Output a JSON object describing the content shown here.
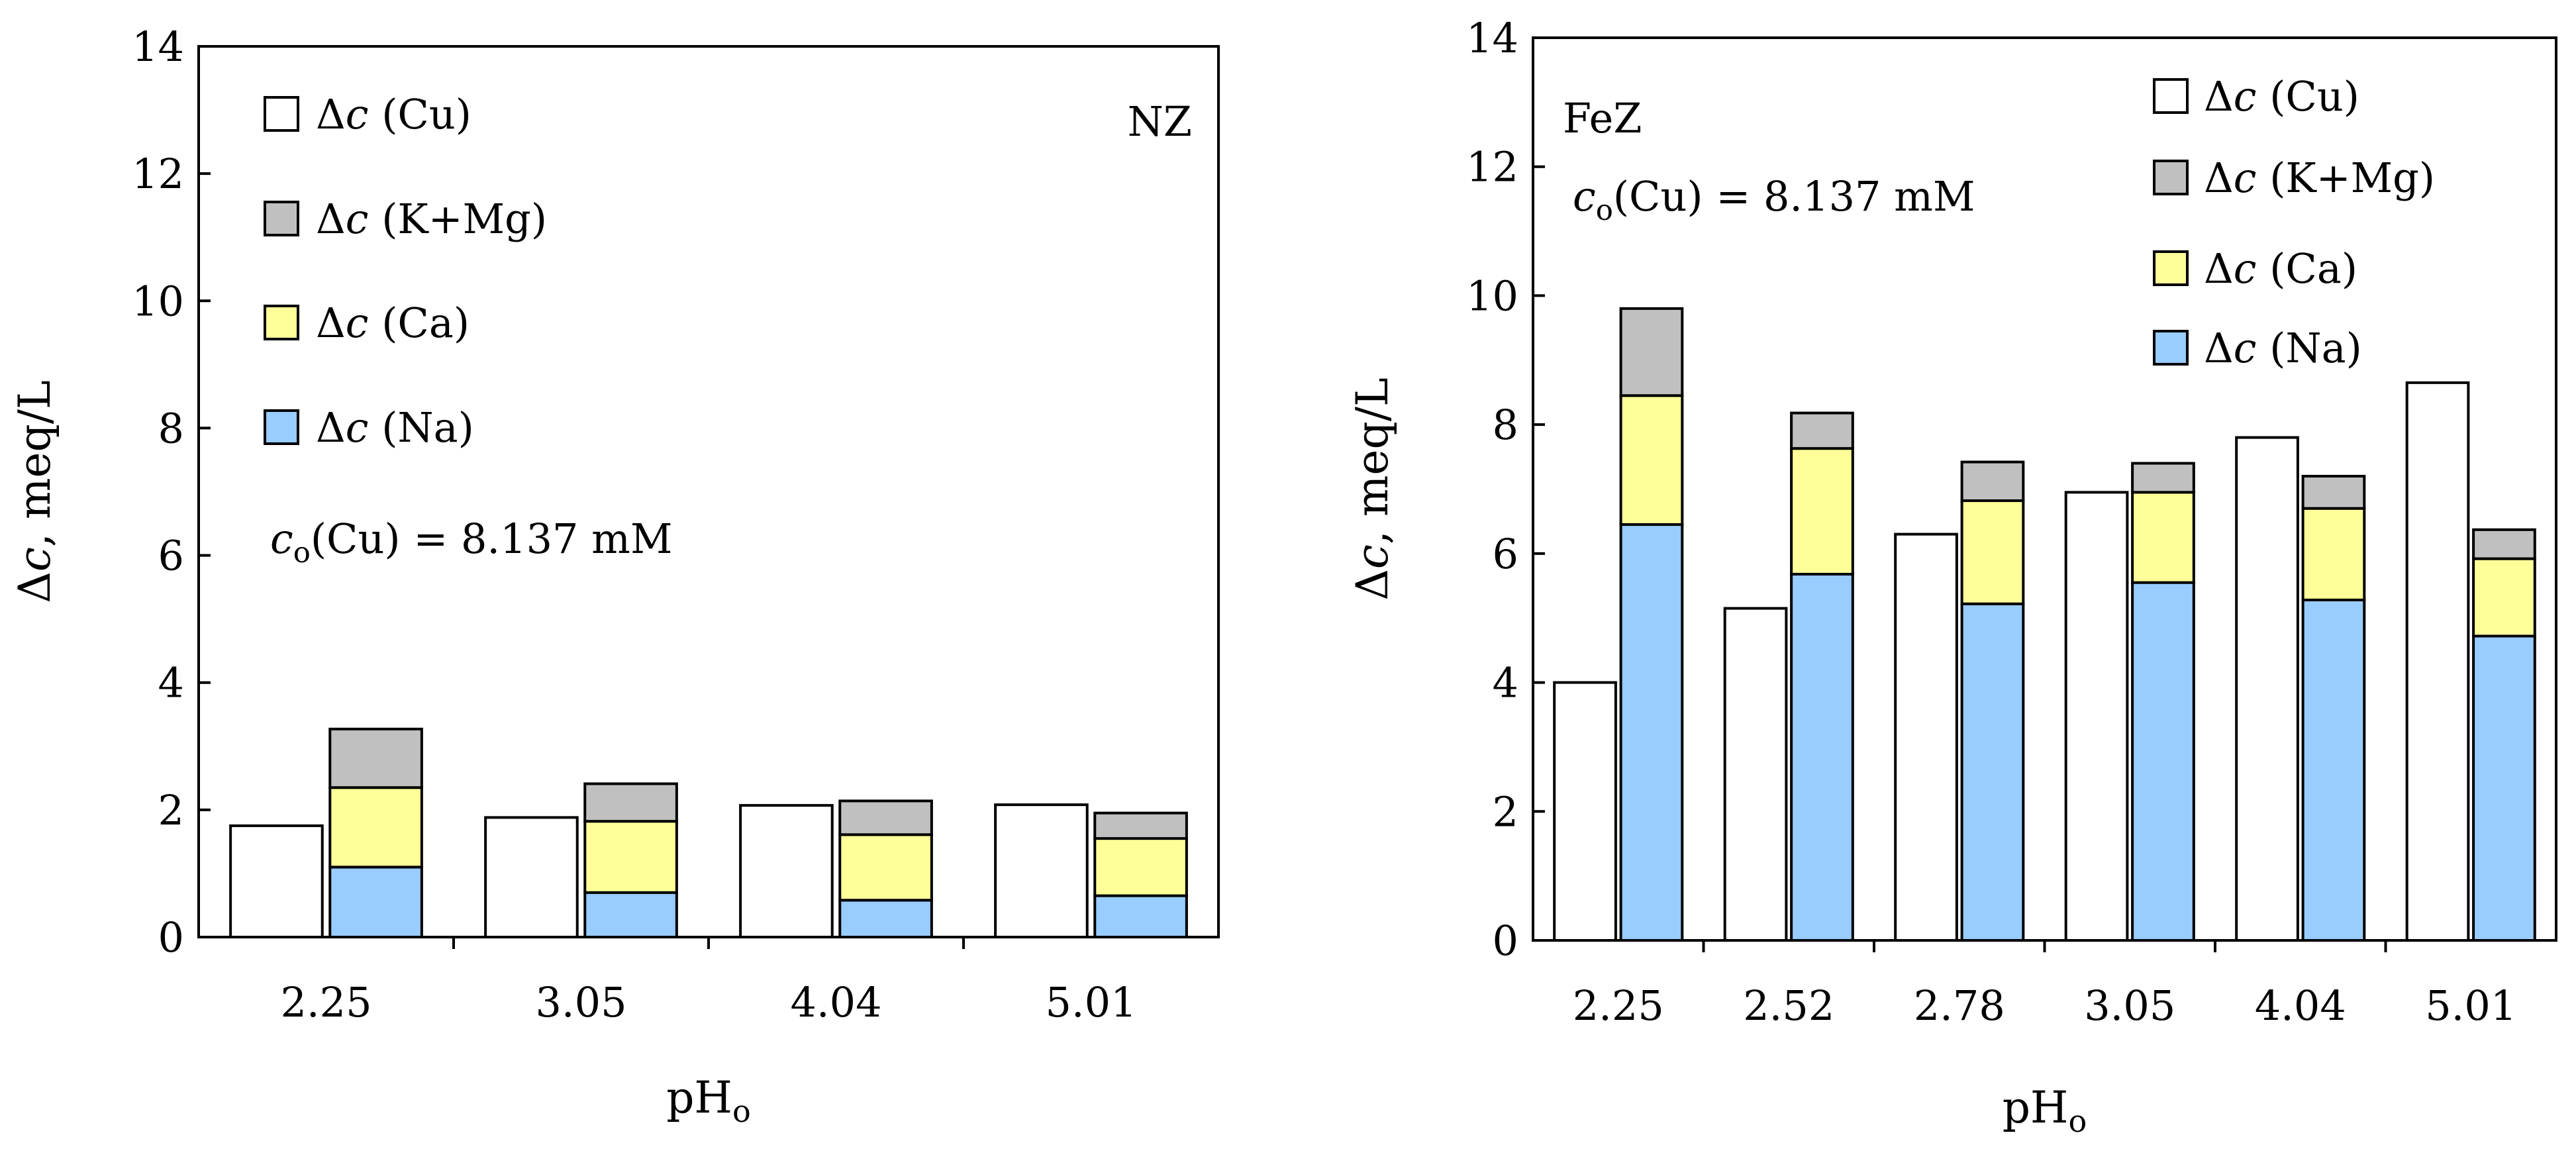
{
  "colors": {
    "cu": "#ffffff",
    "kmg": "#c0c0c0",
    "ca": "#ffff99",
    "na": "#99ccff",
    "stroke": "#000000"
  },
  "chart_data": [
    {
      "type": "bar",
      "stacked_second_bar": true,
      "panel_label": "NZ",
      "annotation": {
        "var": "c",
        "sub": "o",
        "rest": "(Cu) = 8.137 mM"
      },
      "xlabel": {
        "main": "pH",
        "sub": "o"
      },
      "ylabel": {
        "prefix": "Δ",
        "var": "c",
        "rest": ", meq/L"
      },
      "ylim": [
        0,
        14
      ],
      "yticks": [
        0,
        2,
        4,
        6,
        8,
        10,
        12,
        14
      ],
      "categories": [
        "2.25",
        "3.05",
        "4.04",
        "5.01"
      ],
      "legend_position": "top-left",
      "legend": [
        {
          "key": "cu",
          "delta": "Δ",
          "var": "c",
          "rest": " (Cu)"
        },
        {
          "key": "kmg",
          "delta": "Δ",
          "var": "c",
          "rest": " (K+Mg)"
        },
        {
          "key": "ca",
          "delta": "Δ",
          "var": "c",
          "rest": " (Ca)"
        },
        {
          "key": "na",
          "delta": "Δ",
          "var": "c",
          "rest": " (Na)"
        }
      ],
      "series": [
        {
          "name": "Δc (Cu)",
          "key": "cu",
          "values": [
            1.75,
            1.88,
            2.07,
            2.08
          ]
        },
        {
          "name": "Δc (Na)",
          "key": "na",
          "values": [
            1.1,
            0.7,
            0.58,
            0.65
          ]
        },
        {
          "name": "Δc (Ca)",
          "key": "ca",
          "values": [
            1.25,
            1.12,
            1.03,
            0.9
          ]
        },
        {
          "name": "Δc (K+Mg)",
          "key": "kmg",
          "values": [
            0.92,
            0.59,
            0.53,
            0.4
          ]
        }
      ]
    },
    {
      "type": "bar",
      "stacked_second_bar": true,
      "panel_label": "FeZ",
      "annotation": {
        "var": "c",
        "sub": "o",
        "rest": "(Cu) = 8.137 mM"
      },
      "xlabel": {
        "main": "pH",
        "sub": "o"
      },
      "ylabel": {
        "prefix": "Δ",
        "var": "c",
        "rest": ", meq/L"
      },
      "ylim": [
        0,
        14
      ],
      "yticks": [
        0,
        2,
        4,
        6,
        8,
        10,
        12,
        14
      ],
      "categories": [
        "2.25",
        "2.52",
        "2.78",
        "3.05",
        "4.04",
        "5.01"
      ],
      "legend_position": "top-right",
      "legend": [
        {
          "key": "cu",
          "delta": "Δ",
          "var": "c",
          "rest": " (Cu)"
        },
        {
          "key": "kmg",
          "delta": "Δ",
          "var": "c",
          "rest": " (K+Mg)"
        },
        {
          "key": "ca",
          "delta": "Δ",
          "var": "c",
          "rest": " (Ca)"
        },
        {
          "key": "na",
          "delta": "Δ",
          "var": "c",
          "rest": " (Na)"
        }
      ],
      "series": [
        {
          "name": "Δc (Cu)",
          "key": "cu",
          "values": [
            4.0,
            5.15,
            6.3,
            6.95,
            7.8,
            8.65
          ]
        },
        {
          "name": "Δc (Na)",
          "key": "na",
          "values": [
            6.45,
            5.68,
            5.22,
            5.55,
            5.28,
            4.72
          ]
        },
        {
          "name": "Δc (Ca)",
          "key": "ca",
          "values": [
            2.0,
            1.95,
            1.6,
            1.4,
            1.42,
            1.2
          ]
        },
        {
          "name": "Δc (K+Mg)",
          "key": "kmg",
          "values": [
            1.35,
            0.55,
            0.6,
            0.45,
            0.5,
            0.45
          ]
        }
      ]
    }
  ]
}
